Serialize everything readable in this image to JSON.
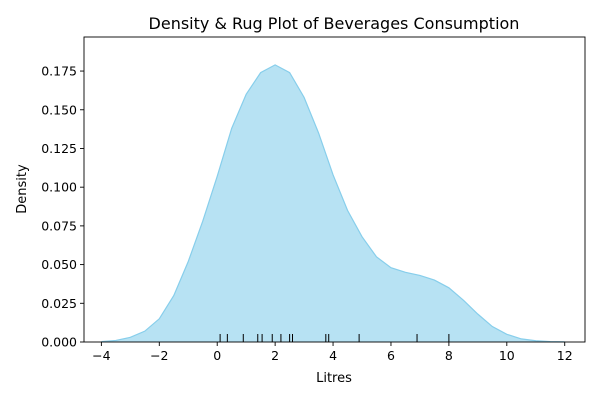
{
  "chart_data": {
    "type": "area",
    "title": "Density & Rug Plot of Beverages Consumption",
    "xlabel": "Litres",
    "ylabel": "Density",
    "xlim": [
      -4.6,
      12.7
    ],
    "ylim": [
      0,
      0.197
    ],
    "x_ticks": [
      -4,
      -2,
      0,
      2,
      4,
      6,
      8,
      10,
      12
    ],
    "x_tick_labels": [
      "−4",
      "−2",
      "0",
      "2",
      "4",
      "6",
      "8",
      "10",
      "12"
    ],
    "y_ticks": [
      0.0,
      0.025,
      0.05,
      0.075,
      0.1,
      0.125,
      0.15,
      0.175
    ],
    "y_tick_labels": [
      "0.000",
      "0.025",
      "0.050",
      "0.075",
      "0.100",
      "0.125",
      "0.150",
      "0.175"
    ],
    "grid": false,
    "legend": "none",
    "series": [
      {
        "kind": "density",
        "fill_color": "#87ceeb",
        "fill_opacity": 0.6,
        "line_color": "#87ceeb",
        "x": [
          -4,
          -3.5,
          -3,
          -2.5,
          -2,
          -1.5,
          -1,
          -0.5,
          0,
          0.5,
          1,
          1.5,
          2,
          2.5,
          3,
          3.5,
          4,
          4.5,
          5,
          5.5,
          6,
          6.5,
          7,
          7.5,
          8,
          8.5,
          9,
          9.5,
          10,
          10.5,
          11,
          11.5,
          12
        ],
        "y": [
          0.0003,
          0.001,
          0.003,
          0.007,
          0.015,
          0.03,
          0.052,
          0.078,
          0.107,
          0.138,
          0.16,
          0.174,
          0.179,
          0.174,
          0.158,
          0.135,
          0.108,
          0.085,
          0.068,
          0.055,
          0.048,
          0.045,
          0.043,
          0.04,
          0.035,
          0.027,
          0.018,
          0.01,
          0.005,
          0.002,
          0.0008,
          0.0003,
          0.0001
        ]
      },
      {
        "kind": "rug",
        "line_color": "#000000",
        "x": [
          0.1,
          0.35,
          0.9,
          1.4,
          1.55,
          1.9,
          2.2,
          2.5,
          2.6,
          3.75,
          3.85,
          4.9,
          6.9,
          8.0
        ]
      }
    ]
  }
}
